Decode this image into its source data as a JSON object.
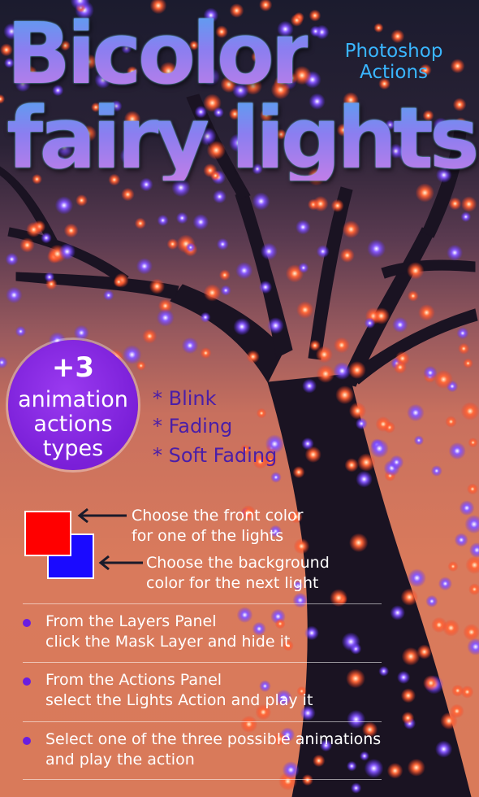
{
  "title": {
    "line1": "Bicolor",
    "line2": "fairy lights"
  },
  "subtitle": {
    "line1": "Photoshop",
    "line2": "Actions"
  },
  "badge": {
    "count": "+3",
    "line1": "animation",
    "line2": "actions",
    "line3": "types"
  },
  "animation_types": [
    "* Blink",
    "* Fading",
    "* Soft Fading"
  ],
  "color_hints": {
    "front": {
      "line1": "Choose the front color",
      "line2": "for one of the lights"
    },
    "back": {
      "line1": "Choose the background",
      "line2": "color for the next light"
    }
  },
  "swatch_colors": {
    "front": "#ff0000",
    "back": "#1a0aff"
  },
  "steps": [
    {
      "line1": "From the Layers Panel",
      "line2": "click the Mask Layer and hide it"
    },
    {
      "line1": "From the Actions Panel",
      "line2": "select the Lights Action and play it"
    },
    {
      "line1": "Select one of the three possible animations",
      "line2": "and play the action"
    }
  ],
  "colors": {
    "title_gradient_top": "#5aa0f0",
    "title_gradient_bottom": "#c07ee8",
    "subtitle": "#3ab6ff",
    "badge": "#7a1fd8",
    "list_text": "#4a1ea8",
    "light_red": "#ff5a3a",
    "light_blue": "#7a4dff"
  }
}
